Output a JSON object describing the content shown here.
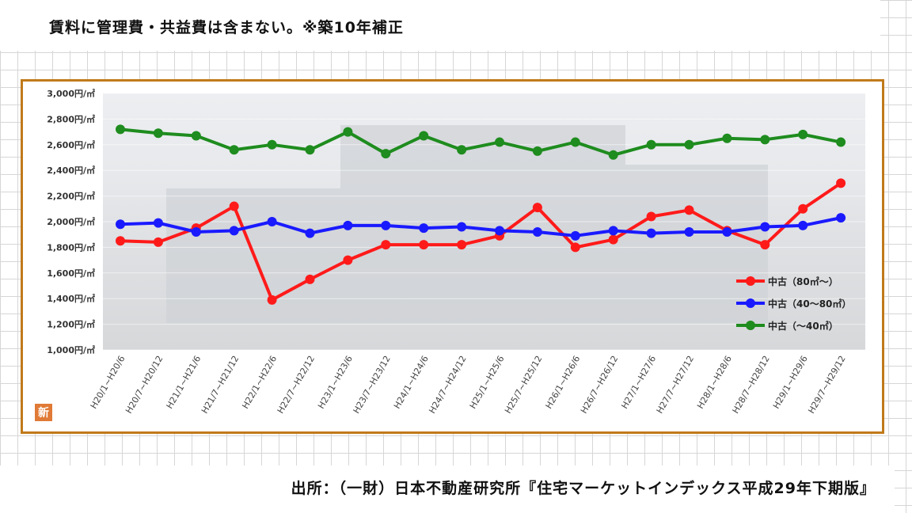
{
  "header": {
    "note": "賃料に管理費・共益費は含まない。※築10年補正"
  },
  "footer": {
    "source": "出所：（一財）日本不動産研究所『住宅マーケットインデックス平成29年下期版』"
  },
  "logo": {
    "glyph": "新"
  },
  "chart_data": {
    "type": "line",
    "title": "",
    "xlabel": "",
    "ylabel": "",
    "ylim": [
      1000,
      3000
    ],
    "yticks": [
      "1,000円/㎡",
      "1,200円/㎡",
      "1,400円/㎡",
      "1,600円/㎡",
      "1,800円/㎡",
      "2,000円/㎡",
      "2,200円/㎡",
      "2,400円/㎡",
      "2,600円/㎡",
      "2,800円/㎡",
      "3,000円/㎡"
    ],
    "categories": [
      "H20/1~H20/6",
      "H20/7~H20/12",
      "H21/1~H21/6",
      "H21/7~H21/12",
      "H22/1~H22/6",
      "H22/7~H22/12",
      "H23/1~H23/6",
      "H23/7~H23/12",
      "H24/1~H24/6",
      "H24/7~H24/12",
      "H25/1~H25/6",
      "H25/7~H25/12",
      "H26/1~H26/6",
      "H26/7~H26/12",
      "H27/1~H27/6",
      "H27/7~H27/12",
      "H28/1~H28/6",
      "H28/7~H28/12",
      "H29/1~H29/6",
      "H29/7~H29/12"
    ],
    "legend_position": "right",
    "series": [
      {
        "name": "中古（80㎡～）",
        "color": "#ff1a1a",
        "values": [
          1850,
          1840,
          1950,
          2120,
          1390,
          1550,
          1700,
          1820,
          1820,
          1820,
          1890,
          2110,
          1800,
          1860,
          2040,
          2090,
          1930,
          1820,
          2100,
          2300
        ]
      },
      {
        "name": "中古（40～80㎡）",
        "color": "#1a1aff",
        "values": [
          1980,
          1990,
          1920,
          1930,
          2000,
          1910,
          1970,
          1970,
          1950,
          1960,
          1930,
          1920,
          1890,
          1930,
          1910,
          1920,
          1920,
          1960,
          1970,
          2030
        ]
      },
      {
        "name": "中古（～40㎡）",
        "color": "#1e8c1e",
        "values": [
          2720,
          2690,
          2670,
          2560,
          2600,
          2560,
          2700,
          2530,
          2670,
          2560,
          2620,
          2550,
          2620,
          2520,
          2600,
          2600,
          2650,
          2640,
          2680,
          2620
        ]
      }
    ]
  }
}
